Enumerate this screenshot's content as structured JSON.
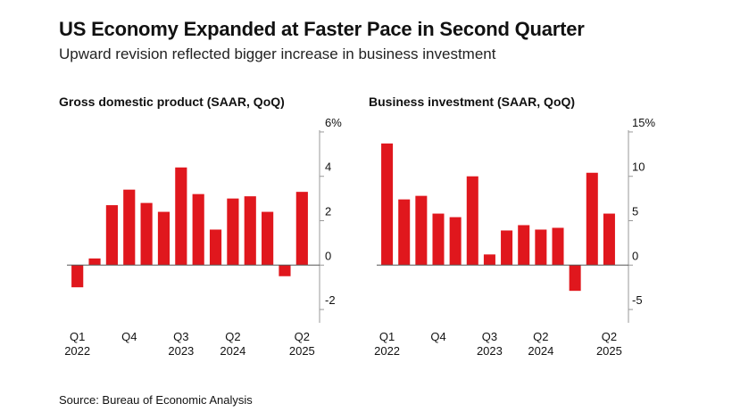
{
  "header": {
    "title": "US Economy Expanded at Faster Pace in Second Quarter",
    "subtitle": "Upward revision reflected bigger increase in business investment"
  },
  "footer": {
    "source": "Source: Bureau of Economic Analysis"
  },
  "chart_data": [
    {
      "type": "bar",
      "title": "Gross domestic product (SAAR, QoQ)",
      "bar_color": "#e0171d",
      "ylim": [
        -2.6,
        6.4
      ],
      "y_ticks": [
        {
          "value": 6,
          "label": "6%"
        },
        {
          "value": 4,
          "label": "4"
        },
        {
          "value": 2,
          "label": "2"
        },
        {
          "value": 0,
          "label": "0"
        },
        {
          "value": -2,
          "label": "-2"
        }
      ],
      "categories": [
        "Q1 2022",
        "Q2 2022",
        "Q3 2022",
        "Q4 2022",
        "Q1 2023",
        "Q2 2023",
        "Q3 2023",
        "Q4 2023",
        "Q1 2024",
        "Q2 2024",
        "Q3 2024",
        "Q4 2024",
        "Q1 2025",
        "Q2 2025"
      ],
      "values": [
        -1.0,
        0.3,
        2.7,
        3.4,
        2.8,
        2.4,
        4.4,
        3.2,
        1.6,
        3.0,
        3.1,
        2.4,
        -0.5,
        3.3
      ],
      "x_labels": [
        {
          "index": 0,
          "line1": "Q1",
          "line2": "2022"
        },
        {
          "index": 3,
          "line1": "Q4",
          "line2": ""
        },
        {
          "index": 6,
          "line1": "Q3",
          "line2": "2023"
        },
        {
          "index": 9,
          "line1": "Q2",
          "line2": "2024"
        },
        {
          "index": 13,
          "line1": "Q2",
          "line2": "2025"
        }
      ]
    },
    {
      "type": "bar",
      "title": "Business investment (SAAR, QoQ)",
      "bar_color": "#e0171d",
      "ylim": [
        -6.5,
        16
      ],
      "y_ticks": [
        {
          "value": 15,
          "label": "15%"
        },
        {
          "value": 10,
          "label": "10"
        },
        {
          "value": 5,
          "label": "5"
        },
        {
          "value": 0,
          "label": "0"
        },
        {
          "value": -5,
          "label": "-5"
        }
      ],
      "categories": [
        "Q1 2022",
        "Q2 2022",
        "Q3 2022",
        "Q4 2022",
        "Q1 2023",
        "Q2 2023",
        "Q3 2023",
        "Q4 2023",
        "Q1 2024",
        "Q2 2024",
        "Q3 2024",
        "Q4 2024",
        "Q1 2025",
        "Q2 2025"
      ],
      "values": [
        13.7,
        7.4,
        7.8,
        5.8,
        5.4,
        10.0,
        1.2,
        3.9,
        4.5,
        4.0,
        4.2,
        -2.9,
        10.4,
        5.8
      ],
      "x_labels": [
        {
          "index": 0,
          "line1": "Q1",
          "line2": "2022"
        },
        {
          "index": 3,
          "line1": "Q4",
          "line2": ""
        },
        {
          "index": 6,
          "line1": "Q3",
          "line2": "2023"
        },
        {
          "index": 9,
          "line1": "Q2",
          "line2": "2024"
        },
        {
          "index": 13,
          "line1": "Q2",
          "line2": "2025"
        }
      ]
    }
  ]
}
